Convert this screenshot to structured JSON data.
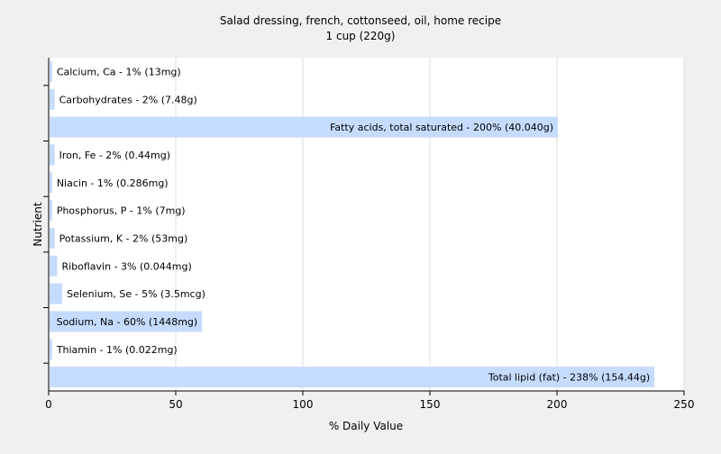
{
  "chart_data": {
    "type": "bar",
    "orientation": "horizontal",
    "title": "Salad dressing, french, cottonseed, oil, home recipe",
    "subtitle": "1 cup (220g)",
    "xlabel": "% Daily Value",
    "ylabel": "Nutrient",
    "xlim": [
      0,
      250
    ],
    "x_ticks": [
      "0",
      "50",
      "100",
      "150",
      "200",
      "250"
    ],
    "grid": "vertical",
    "categories": [
      "Calcium, Ca",
      "Carbohydrates",
      "Fatty acids, total saturated",
      "Iron, Fe",
      "Niacin",
      "Phosphorus, P",
      "Potassium, K",
      "Riboflavin",
      "Selenium, Se",
      "Sodium, Na",
      "Thiamin",
      "Total lipid (fat)"
    ],
    "values": [
      1,
      2,
      200,
      2,
      1,
      1,
      2,
      3,
      5,
      60,
      1,
      238
    ],
    "bar_labels": [
      "Calcium, Ca - 1% (13mg)",
      "Carbohydrates - 2% (7.48g)",
      "Fatty acids, total saturated - 200% (40.040g)",
      "Iron, Fe - 2% (0.44mg)",
      "Niacin - 1% (0.286mg)",
      "Phosphorus, P - 1% (7mg)",
      "Potassium, K - 2% (53mg)",
      "Riboflavin - 3% (0.044mg)",
      "Selenium, Se - 5% (3.5mcg)",
      "Sodium, Na - 60% (1448mg)",
      "Thiamin - 1% (0.022mg)",
      "Total lipid (fat) - 238% (154.44g)"
    ],
    "colors": {
      "bar": "#c6dcff",
      "plot_background": "#ffffff",
      "page_background": "#f0f0f0",
      "grid": "#dcdcdc",
      "axis": "#000000"
    }
  }
}
